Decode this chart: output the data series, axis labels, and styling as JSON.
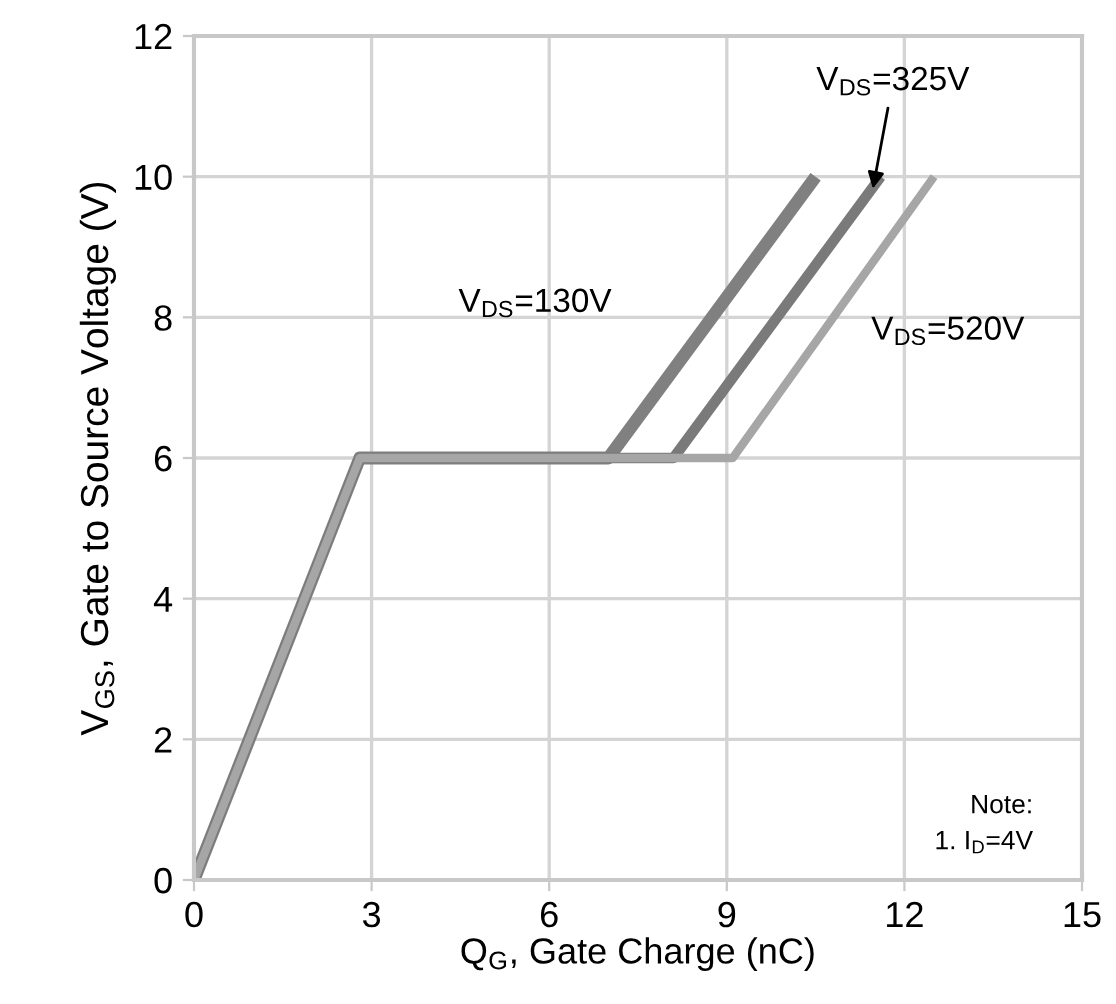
{
  "chart_data": {
    "type": "line",
    "xlabel": "Q$_{G}$, Gate Charge (nC)",
    "ylabel": "V$_{GS}$, Gate to Source Voltage (V)",
    "xlim": [
      0,
      15
    ],
    "ylim": [
      0,
      12
    ],
    "xticks": [
      0,
      3,
      6,
      9,
      12,
      15
    ],
    "yticks": [
      0,
      2,
      4,
      6,
      8,
      10,
      12
    ],
    "grid": true,
    "legend": false,
    "marker": "none",
    "line_style": "solid",
    "series": [
      {
        "name": "V$_{DS}$=130V",
        "color": "#808080",
        "x": [
          0,
          2.8,
          7.0,
          10.5
        ],
        "values": [
          0,
          6,
          6,
          10
        ]
      },
      {
        "name": "V$_{DS}$=325V",
        "color": "#7a7a7a",
        "x": [
          0,
          2.8,
          8.1,
          11.6
        ],
        "values": [
          0,
          6,
          6,
          10
        ]
      },
      {
        "name": "V$_{DS}$=520V",
        "color": "#a6a6a6",
        "x": [
          0,
          2.8,
          9.1,
          12.5
        ],
        "values": [
          0,
          6,
          6,
          10
        ]
      }
    ],
    "annotations": [
      "Note:",
      "1. I$_{D}$=4V"
    ]
  }
}
